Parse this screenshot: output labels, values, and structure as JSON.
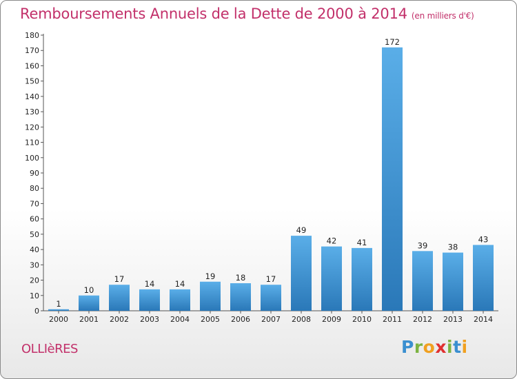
{
  "title": "Remboursements Annuels de la Dette de 2000 à 2014",
  "unit": "(en milliers d'€)",
  "town": "OLLIèRES",
  "logo": {
    "letters": [
      "P",
      "r",
      "o",
      "x",
      "i",
      "t",
      "i"
    ],
    "colors": [
      "#3a8fd0",
      "#7cb342",
      "#f0a020",
      "#e03030",
      "#7cb342",
      "#3a8fd0",
      "#f0a020"
    ]
  },
  "chart_data": {
    "type": "bar",
    "title": "Remboursements Annuels de la Dette de 2000 à 2014",
    "xlabel": "",
    "ylabel": "",
    "categories": [
      "2000",
      "2001",
      "2002",
      "2003",
      "2004",
      "2005",
      "2006",
      "2007",
      "2008",
      "2009",
      "2010",
      "2011",
      "2012",
      "2013",
      "2014"
    ],
    "values": [
      1,
      10,
      17,
      14,
      14,
      19,
      18,
      17,
      49,
      42,
      41,
      172,
      39,
      38,
      43
    ],
    "ylim": [
      0,
      180
    ],
    "yticks": [
      0,
      10,
      20,
      30,
      40,
      50,
      60,
      70,
      80,
      90,
      100,
      110,
      120,
      130,
      140,
      150,
      160,
      170,
      180
    ],
    "grid": false,
    "bar_color_top": "#5aaee8",
    "bar_color_bottom": "#2a78b8"
  }
}
